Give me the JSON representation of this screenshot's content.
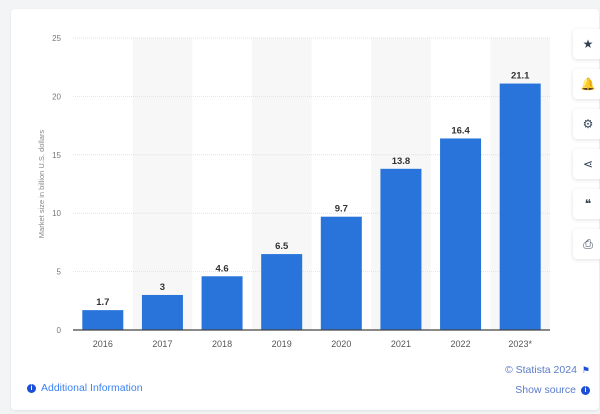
{
  "chart_data": {
    "type": "bar",
    "categories": [
      "2016",
      "2017",
      "2018",
      "2019",
      "2020",
      "2021",
      "2022",
      "2023*"
    ],
    "values": [
      1.7,
      3,
      4.6,
      6.5,
      9.7,
      13.8,
      16.4,
      21.1
    ],
    "value_labels": [
      "1.7",
      "3",
      "4.6",
      "6.5",
      "9.7",
      "13.8",
      "16.4",
      "21.1"
    ],
    "title": "",
    "xlabel": "",
    "ylabel": "Market size in billion U.S. dollars",
    "ylim": [
      0,
      25
    ],
    "yticks": [
      0,
      5,
      10,
      15,
      20,
      25
    ],
    "grid": true,
    "bar_color": "#2874db"
  },
  "toolbar": {
    "icons": [
      "star-icon",
      "bell-icon",
      "gear-icon",
      "share-icon",
      "quote-icon",
      "print-icon"
    ],
    "glyphs": [
      "★",
      "🔔",
      "⚙",
      "⋖",
      "❝",
      "⎙"
    ]
  },
  "footer": {
    "additional_info": "Additional Information",
    "copyright": "© Statista 2024",
    "show_source": "Show source"
  }
}
